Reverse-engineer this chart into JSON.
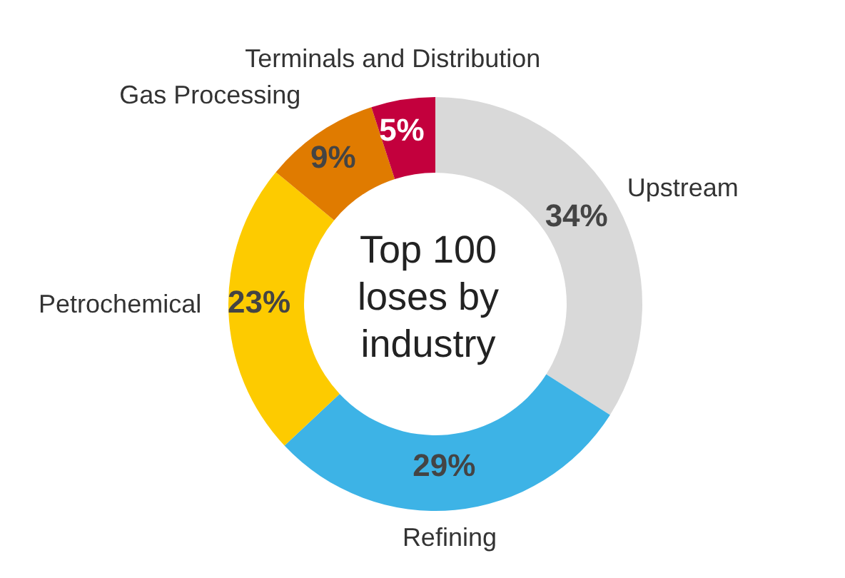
{
  "chart_data": {
    "type": "donut",
    "title": "Top 100 loses by industry",
    "categories": [
      "Upstream",
      "Refining",
      "Petrochemical",
      "Gas Processing",
      "Terminals and Distribution"
    ],
    "values": [
      34,
      29,
      23,
      9,
      5
    ],
    "value_labels": [
      "34%",
      "29%",
      "23%",
      "9%",
      "5%"
    ],
    "colors": [
      "#d9d9d9",
      "#3db3e6",
      "#fdcb00",
      "#e07b00",
      "#c3003d"
    ]
  }
}
